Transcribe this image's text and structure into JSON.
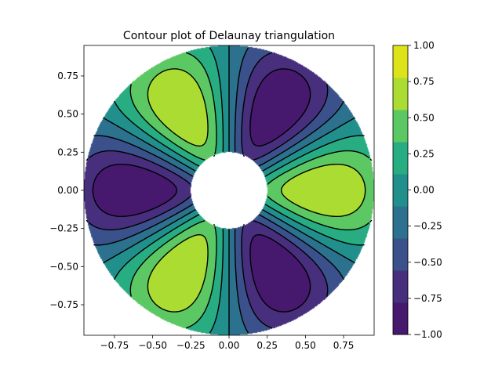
{
  "chart_data": {
    "type": "contour",
    "title": "Contour plot of Delaunay triangulation",
    "xlabel": "",
    "ylabel": "",
    "xlim": [
      -0.95,
      0.95
    ],
    "ylim": [
      -0.95,
      0.95
    ],
    "x_ticks": [
      -0.75,
      -0.5,
      -0.25,
      0.0,
      0.25,
      0.5,
      0.75
    ],
    "x_tick_labels": [
      "−0.75",
      "−0.50",
      "−0.25",
      "0.00",
      "0.25",
      "0.50",
      "0.75"
    ],
    "y_ticks": [
      -0.75,
      -0.5,
      -0.25,
      0.0,
      0.25,
      0.5,
      0.75
    ],
    "y_tick_labels": [
      "−0.75",
      "−0.50",
      "−0.25",
      "0.00",
      "0.25",
      "0.50",
      "0.75"
    ],
    "domain": {
      "shape": "annulus",
      "inner_radius": 0.25,
      "outer_radius": 0.95
    },
    "levels": [
      -1.0,
      -0.75,
      -0.5,
      -0.25,
      0.0,
      0.25,
      0.5,
      0.75,
      1.0
    ],
    "contour_lines": {
      "color": "#000000",
      "negative_style": "dashed",
      "positive_style": "solid"
    },
    "colorbar": {
      "ticks": [
        -1.0,
        -0.75,
        -0.5,
        -0.25,
        0.0,
        0.25,
        0.5,
        0.75,
        1.0
      ],
      "tick_labels": [
        "−1.00",
        "−0.75",
        "−0.50",
        "−0.25",
        "0.00",
        "0.25",
        "0.50",
        "0.75",
        "1.00"
      ],
      "colors": [
        "#46186e",
        "#472f7d",
        "#3b518b",
        "#2c718e",
        "#21908d",
        "#27ad81",
        "#5cc863",
        "#aadc32",
        "#dde318"
      ]
    }
  }
}
